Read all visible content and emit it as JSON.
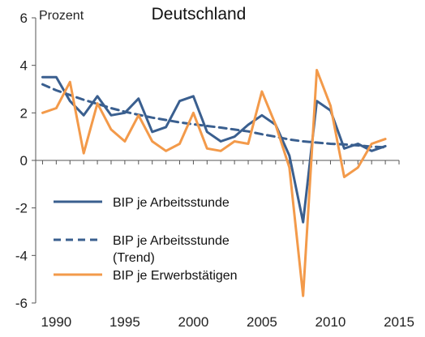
{
  "chart_data": {
    "type": "line",
    "title": "Deutschland",
    "ylabel": "Prozent",
    "xlabel": "",
    "xlim": [
      1988.5,
      2015
    ],
    "ylim": [
      -6,
      6
    ],
    "x_ticks": [
      "1990",
      "1995",
      "2000",
      "2005",
      "2010",
      "2015"
    ],
    "y_ticks": [
      "6",
      "4",
      "2",
      "0",
      "-2",
      "-4",
      "-6"
    ],
    "grid": false,
    "legend_position": "left",
    "x": [
      1989,
      1990,
      1991,
      1992,
      1993,
      1994,
      1995,
      1996,
      1997,
      1998,
      1999,
      2000,
      2001,
      2002,
      2003,
      2004,
      2005,
      2006,
      2007,
      2008,
      2009,
      2010,
      2011,
      2012,
      2013,
      2014
    ],
    "series": [
      {
        "name": "BIP je Arbeitsstunde",
        "color": "#3a5f8f",
        "dash": "solid",
        "values": [
          3.5,
          3.5,
          2.5,
          1.9,
          2.7,
          1.9,
          2.0,
          2.6,
          1.2,
          1.4,
          2.5,
          2.7,
          1.2,
          0.8,
          1.0,
          1.5,
          1.9,
          1.5,
          0.2,
          -2.6,
          2.5,
          2.1,
          0.5,
          0.7,
          0.4,
          0.6
        ]
      },
      {
        "name": "BIP je Arbeitsstunde\n(Trend)",
        "color": "#3a5f8f",
        "dash": "dashed",
        "values": [
          3.2,
          2.95,
          2.75,
          2.55,
          2.38,
          2.2,
          2.05,
          1.92,
          1.8,
          1.7,
          1.6,
          1.52,
          1.45,
          1.38,
          1.3,
          1.22,
          1.1,
          1.0,
          0.88,
          0.8,
          0.75,
          0.7,
          0.67,
          0.63,
          0.58,
          0.55
        ]
      },
      {
        "name": "BIP je Erwerbstätigen",
        "color": "#f39a4a",
        "dash": "solid",
        "values": [
          2.0,
          2.2,
          3.3,
          0.3,
          2.4,
          1.3,
          0.8,
          1.9,
          0.8,
          0.4,
          0.7,
          2.0,
          0.5,
          0.4,
          0.8,
          0.7,
          2.9,
          1.5,
          -0.3,
          -5.7,
          3.8,
          2.3,
          -0.7,
          -0.3,
          0.7,
          0.9
        ]
      }
    ]
  }
}
